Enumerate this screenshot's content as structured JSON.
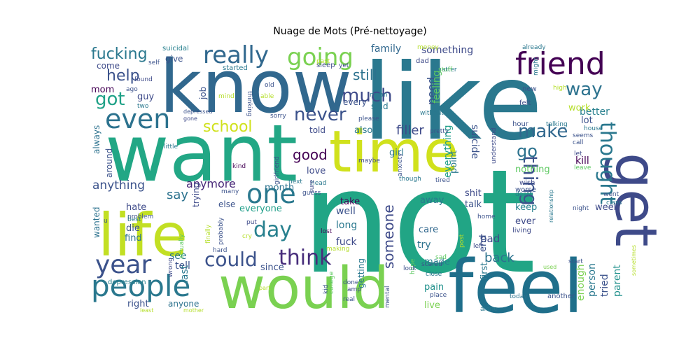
{
  "title": "Nuage de Mots (Pré-nettoyage)",
  "words": [
    "not",
    "like",
    "want",
    "know",
    "would",
    "feel",
    "time",
    "life",
    "get",
    "friend",
    "people",
    "year",
    "even",
    "going",
    "really",
    "one",
    "could",
    "think",
    "day",
    "thought",
    "help",
    "got",
    "much",
    "way",
    "make",
    "thing",
    "school",
    "fucking",
    "never",
    "good",
    "go",
    "still",
    "filler",
    "someone",
    "say",
    "anything",
    "anymore",
    "everyone",
    "need",
    "suicide",
    "feeling",
    "everything",
    "something",
    "family",
    "better",
    "work",
    "lot",
    "kill",
    "nothing",
    "back",
    "bad",
    "made",
    "take",
    "well",
    "long",
    "fuck",
    "care",
    "try",
    "away",
    "shit",
    "talk",
    "keep",
    "ever",
    "person",
    "tried",
    "parent",
    "enough",
    "week",
    "tell",
    "see",
    "right",
    "anyone",
    "since",
    "hate",
    "die",
    "find",
    "wanted",
    "last",
    "else",
    "month",
    "love",
    "girl",
    "told",
    "also",
    "said",
    "every",
    "point",
    "first",
    "end",
    "live",
    "pain",
    "getting",
    "around",
    "always",
    "trying",
    "job",
    "guy",
    "mom",
    "come",
    "give",
    "suicidal",
    "started",
    "sleep",
    "past",
    "dad",
    "matter",
    "already",
    "might",
    "high",
    "new",
    "felt",
    "hour",
    "talking",
    "call",
    "house",
    "seems",
    "let",
    "leave",
    "went",
    "class",
    "night",
    "wish",
    "death",
    "worse",
    "living",
    "home",
    "used",
    "start",
    "sometimes",
    "relationship",
    "today",
    "another",
    "alone",
    "left",
    "place",
    "close",
    "hope",
    "scared",
    "sad",
    "money",
    "yet",
    "self",
    "found",
    "ago",
    "two",
    "mind",
    "able",
    "old",
    "thinking",
    "depressed",
    "gone",
    "sorry",
    "please",
    "mean",
    "without",
    "stuff",
    "pretty",
    "understand",
    "tired",
    "though",
    "anxiety",
    "maybe",
    "girlfriend",
    "head",
    "kind",
    "little",
    "next",
    "sure",
    "guess",
    "many",
    "problem",
    "best",
    "finally",
    "actually",
    "probably",
    "put",
    "cry",
    "hard",
    "lost",
    "making",
    "look",
    "kid",
    "done",
    "amp",
    "college",
    "real",
    "mental",
    "post",
    "wrong",
    "least",
    "mother",
    "depression",
    "part",
    "u"
  ]
}
